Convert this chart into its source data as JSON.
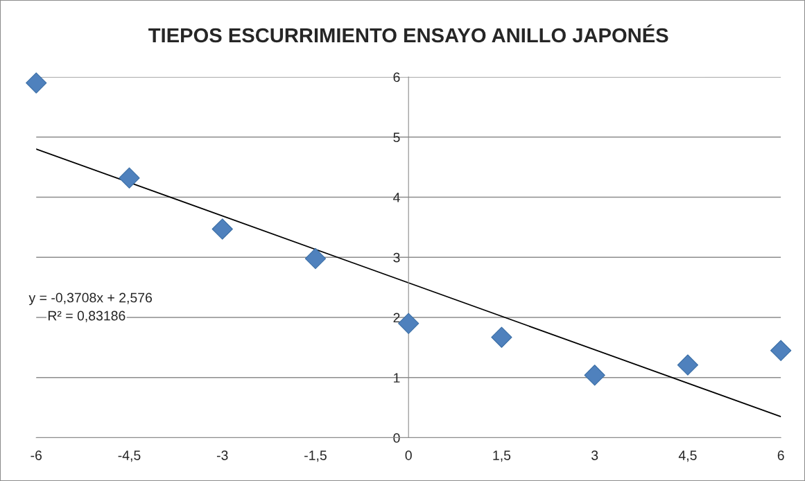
{
  "chart_data": {
    "type": "scatter",
    "title": "TIEPOS ESCURRIMIENTO ENSAYO ANILLO JAPONÉS",
    "series": [
      {
        "color": "#4f81bd",
        "marker": "diamond",
        "x": [
          -6,
          -4.5,
          -3,
          -1.5,
          0,
          1.5,
          3,
          4.5,
          6
        ],
        "values": [
          5.9,
          4.32,
          3.47,
          2.98,
          1.9,
          1.67,
          1.04,
          1.21,
          1.45
        ]
      },
      {
        "type": "line",
        "color": "#000000",
        "marker": "none",
        "line_style": "solid",
        "x": [
          -6,
          6
        ],
        "values": [
          4.801,
          0.351
        ]
      }
    ],
    "xlim": [
      -6,
      6
    ],
    "xticks": [
      -6,
      {
        "value": -4.5,
        "label": "-4,5"
      },
      -3,
      {
        "value": -1.5,
        "label": "-1,5"
      },
      0,
      {
        "value": 1.5,
        "label": "1,5"
      },
      3,
      {
        "value": 4.5,
        "label": "4,5"
      },
      6
    ],
    "ylim": [
      0,
      6
    ],
    "yticks": [
      0,
      1,
      2,
      3,
      4,
      5,
      6
    ],
    "grid": "y",
    "annotations": [
      "y = -0,3708x + 2,576",
      "R² = 0,83186"
    ]
  }
}
